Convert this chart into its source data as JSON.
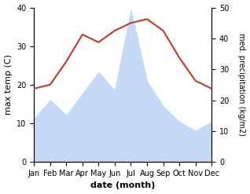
{
  "months": [
    "Jan",
    "Feb",
    "Mar",
    "Apr",
    "May",
    "Jun",
    "Jul",
    "Aug",
    "Sep",
    "Oct",
    "Nov",
    "Dec"
  ],
  "month_x": [
    1,
    2,
    3,
    4,
    5,
    6,
    7,
    8,
    9,
    10,
    11,
    12
  ],
  "temp": [
    19,
    20,
    26,
    33,
    31,
    34,
    36,
    37,
    34,
    27,
    21,
    19
  ],
  "precip": [
    14,
    20,
    15,
    22,
    29,
    23,
    49,
    26,
    18,
    13,
    10,
    13
  ],
  "temp_color": "#c0392b",
  "precip_fill_color": "#c5d8f5",
  "temp_ylim": [
    0,
    40
  ],
  "precip_ylim": [
    0,
    50
  ],
  "temp_yticks": [
    0,
    10,
    20,
    30,
    40
  ],
  "precip_yticks": [
    0,
    10,
    20,
    30,
    40,
    50
  ],
  "xlabel": "date (month)",
  "ylabel_left": "max temp (C)",
  "ylabel_right": "med. precipitation (kg/m2)",
  "figsize": [
    3.18,
    2.47
  ],
  "dpi": 100
}
